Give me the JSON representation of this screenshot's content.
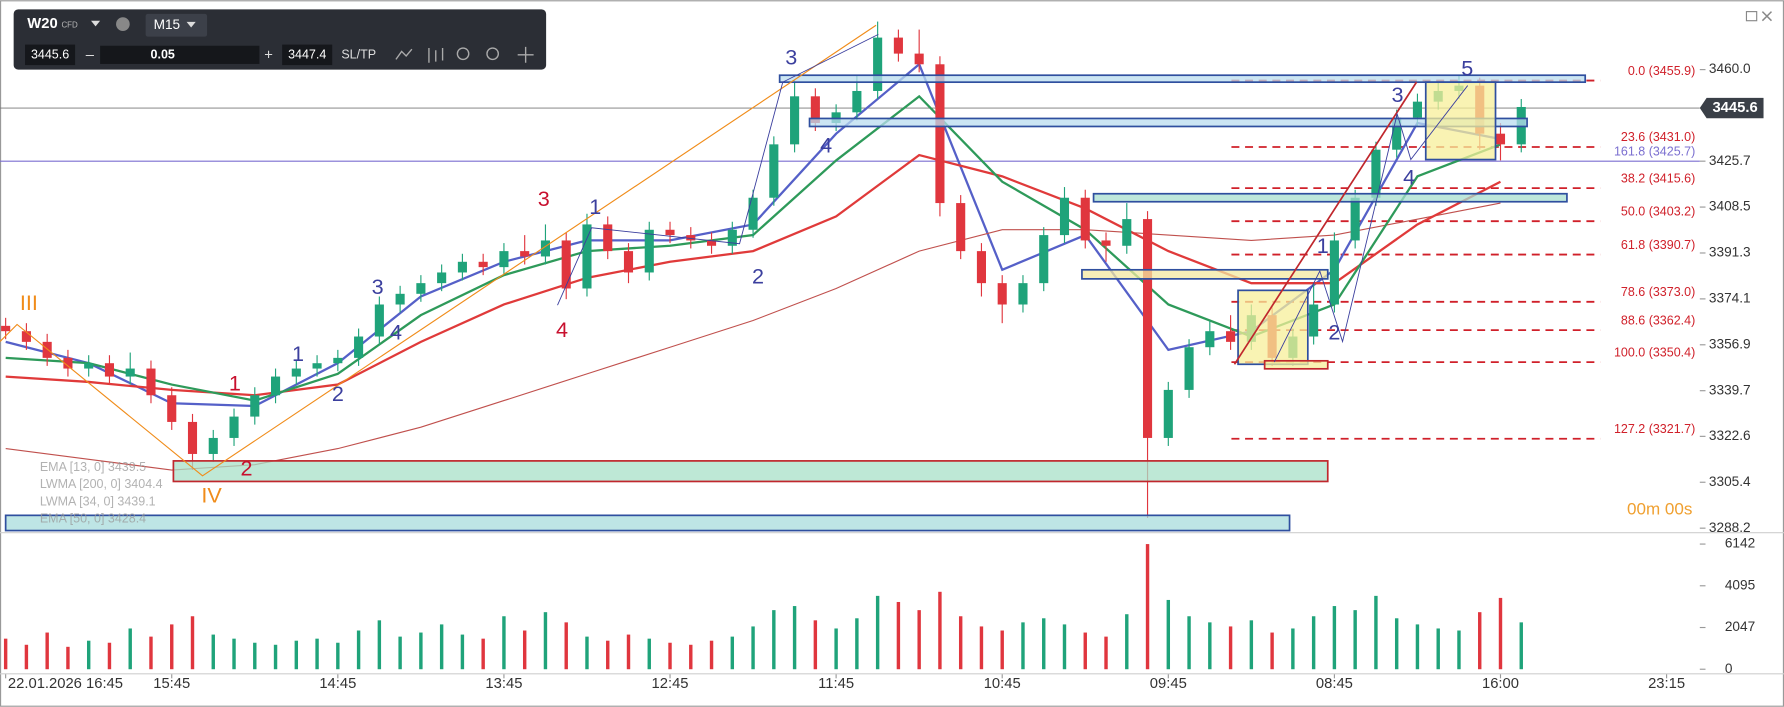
{
  "header": {
    "symbol": "W20",
    "badge": "CFD",
    "timeframe": "M15",
    "bid": "3445.6",
    "decrease": "–",
    "lot": "0.05",
    "increase": "+",
    "ask": "3447.4",
    "sltp": "SL/TP"
  },
  "chart_data": {
    "type": "candlestick",
    "up_color": "#1fa37a",
    "down_color": "#e0363e",
    "xlim": [
      -0.034,
      10.2
    ],
    "ylim": [
      3286.5,
      3486
    ],
    "xticks": [
      {
        "value": 0,
        "label": "22.01.2026 16:45"
      },
      {
        "value": 1,
        "label": "15:45"
      },
      {
        "value": 2,
        "label": "14:45"
      },
      {
        "value": 3,
        "label": "13:45"
      },
      {
        "value": 4,
        "label": "12:45"
      },
      {
        "value": 5,
        "label": "11:45"
      },
      {
        "value": 6,
        "label": "10:45"
      },
      {
        "value": 7,
        "label": "09:45"
      },
      {
        "value": 8,
        "label": "08:45"
      },
      {
        "value": 9,
        "label": "16:00"
      },
      {
        "value": 10,
        "label": "23:15"
      }
    ],
    "yticks": [
      {
        "value": 3460,
        "label": "3460.0"
      },
      3425.7,
      3408.5,
      3391.3,
      3374.1,
      3356.9,
      3339.7,
      3322.6,
      3305.4,
      3288.2
    ],
    "current_price": 3445.6,
    "x": [
      0,
      0.125,
      0.25,
      0.375,
      0.5,
      0.625,
      0.75,
      0.875,
      1,
      1.125,
      1.25,
      1.375,
      1.5,
      1.625,
      1.75,
      1.875,
      2,
      2.125,
      2.25,
      2.375,
      2.5,
      2.625,
      2.75,
      2.875,
      3,
      3.125,
      3.25,
      3.375,
      3.5,
      3.625,
      3.75,
      3.875,
      4,
      4.125,
      4.25,
      4.375,
      4.5,
      4.625,
      4.75,
      4.875,
      5,
      5.125,
      5.25,
      5.375,
      5.5,
      5.625,
      5.75,
      5.875,
      6,
      6.125,
      6.25,
      6.375,
      6.5,
      6.625,
      6.75,
      6.875,
      7,
      7.125,
      7.25,
      7.375,
      7.5,
      7.625,
      7.75,
      7.875,
      8,
      8.125,
      8.25,
      8.375,
      8.5,
      8.625,
      8.75,
      8.875,
      9,
      9.125
    ],
    "open": [
      3364,
      3362,
      3358,
      3352,
      3348,
      3350,
      3345,
      3348,
      3338,
      3328,
      3316,
      3322,
      3330,
      3338,
      3345,
      3348,
      3350,
      3352,
      3360,
      3372,
      3376,
      3380,
      3384,
      3388,
      3386,
      3392,
      3390,
      3396,
      3378,
      3402,
      3392,
      3384,
      3400,
      3398,
      3396,
      3394,
      3400,
      3412,
      3432,
      3450,
      3440,
      3444,
      3452,
      3472,
      3466,
      3462,
      3410,
      3392,
      3380,
      3372,
      3380,
      3398,
      3412,
      3396,
      3394,
      3404,
      3322,
      3340,
      3356,
      3362,
      3358,
      3368,
      3352,
      3360,
      3372,
      3396,
      3412,
      3430,
      3442,
      3448,
      3452,
      3454,
      3436,
      3432
    ],
    "high": [
      3367,
      3365,
      3361,
      3355,
      3353,
      3353,
      3354,
      3351,
      3341,
      3331,
      3325,
      3333,
      3341,
      3348,
      3351,
      3353,
      3355,
      3363,
      3375,
      3379,
      3383,
      3387,
      3391,
      3391,
      3395,
      3398,
      3402,
      3399,
      3406,
      3405,
      3395,
      3403,
      3403,
      3401,
      3399,
      3403,
      3415,
      3435,
      3456,
      3453,
      3447,
      3458,
      3478,
      3475,
      3475,
      3465,
      3413,
      3395,
      3383,
      3383,
      3401,
      3416,
      3415,
      3399,
      3410,
      3407,
      3343,
      3359,
      3366,
      3368,
      3372,
      3371,
      3363,
      3380,
      3399,
      3415,
      3433,
      3445,
      3451,
      3455,
      3458,
      3457,
      3440,
      3449
    ],
    "low": [
      3359,
      3355,
      3349,
      3345,
      3345,
      3342,
      3342,
      3335,
      3325,
      3310,
      3313,
      3319,
      3327,
      3335,
      3342,
      3345,
      3347,
      3349,
      3357,
      3369,
      3373,
      3377,
      3381,
      3383,
      3383,
      3387,
      3387,
      3374,
      3375,
      3389,
      3380,
      3381,
      3395,
      3393,
      3391,
      3391,
      3397,
      3409,
      3429,
      3437,
      3437,
      3441,
      3449,
      3463,
      3459,
      3405,
      3389,
      3375,
      3365,
      3369,
      3377,
      3395,
      3393,
      3388,
      3391,
      3292,
      3319,
      3337,
      3353,
      3355,
      3355,
      3349,
      3349,
      3357,
      3369,
      3393,
      3409,
      3427,
      3439,
      3445,
      3449,
      3430,
      3426,
      3429
    ],
    "close": [
      3362,
      3358,
      3352,
      3348,
      3350,
      3345,
      3348,
      3338,
      3328,
      3316,
      3322,
      3330,
      3338,
      3345,
      3348,
      3350,
      3352,
      3360,
      3372,
      3376,
      3380,
      3384,
      3388,
      3386,
      3392,
      3390,
      3396,
      3378,
      3402,
      3392,
      3384,
      3400,
      3398,
      3396,
      3394,
      3400,
      3412,
      3432,
      3450,
      3440,
      3444,
      3452,
      3472,
      3466,
      3462,
      3410,
      3392,
      3380,
      3372,
      3380,
      3398,
      3412,
      3396,
      3394,
      3404,
      3322,
      3340,
      3356,
      3362,
      3358,
      3368,
      3352,
      3360,
      3372,
      3396,
      3412,
      3430,
      3442,
      3448,
      3452,
      3454,
      3436,
      3432,
      3446
    ],
    "series": [
      {
        "name": "EMA [13, 0] 3439.5",
        "color": "#5560c8",
        "x": [
          0,
          0.5,
          1,
          1.5,
          2,
          2.5,
          3,
          3.5,
          4,
          4.5,
          5,
          5.5,
          6,
          6.5,
          7,
          7.5,
          8,
          8.5,
          9
        ],
        "values": [
          3358,
          3350,
          3335,
          3334,
          3350,
          3375,
          3388,
          3396,
          3396,
          3402,
          3436,
          3462,
          3385,
          3398,
          3355,
          3362,
          3385,
          3440,
          3434
        ]
      },
      {
        "name": "LWMA [200, 0] 3404.4",
        "color": "#c0504d",
        "x": [
          0,
          0.5,
          1,
          1.5,
          2,
          2.5,
          3,
          3.5,
          4,
          4.5,
          5,
          5.5,
          6,
          6.5,
          7,
          7.5,
          8,
          8.5,
          9
        ],
        "values": [
          3318,
          3314,
          3310,
          3312,
          3318,
          3326,
          3336,
          3346,
          3356,
          3366,
          3378,
          3392,
          3400,
          3400,
          3398,
          3396,
          3398,
          3404,
          3410
        ]
      },
      {
        "name": "LWMA [34, 0] 3439.1",
        "color": "#e03a3a",
        "x": [
          0,
          0.5,
          1,
          1.5,
          2,
          2.5,
          3,
          3.5,
          4,
          4.5,
          5,
          5.5,
          6,
          6.5,
          7,
          7.5,
          8,
          8.5,
          9
        ],
        "values": [
          3345,
          3343,
          3340,
          3338,
          3342,
          3358,
          3372,
          3382,
          3388,
          3392,
          3405,
          3428,
          3420,
          3408,
          3392,
          3380,
          3380,
          3402,
          3418
        ]
      },
      {
        "name": "EMA [50, 0] 3428.4",
        "color": "#2e9a5a",
        "x": [
          0,
          0.5,
          1,
          1.5,
          2,
          2.5,
          3,
          3.5,
          4,
          4.5,
          5,
          5.5,
          6,
          6.5,
          7,
          7.5,
          8,
          8.5,
          9
        ],
        "values": [
          3352,
          3350,
          3342,
          3336,
          3346,
          3368,
          3383,
          3392,
          3394,
          3398,
          3426,
          3450,
          3418,
          3400,
          3372,
          3360,
          3372,
          3420,
          3432
        ]
      }
    ],
    "fib_levels": [
      {
        "label": "0.0 (3455.9)",
        "value": 3455.9
      },
      {
        "label": "23.6 (3431.0)",
        "value": 3431.0
      },
      {
        "label": "38.2 (3415.6)",
        "value": 3415.6
      },
      {
        "label": "50.0 (3403.2)",
        "value": 3403.2
      },
      {
        "label": "61.8 (3390.7)",
        "value": 3390.7
      },
      {
        "label": "78.6 (3373.0)",
        "value": 3373.0
      },
      {
        "label": "88.6 (3362.4)",
        "value": 3362.4
      },
      {
        "label": "100.0 (3350.4)",
        "value": 3350.4
      },
      {
        "label": "127.2 (3321.7)",
        "value": 3321.7
      }
    ],
    "fib_color": "#d0202a",
    "horizontal_lines": [
      {
        "label": "161.8 (3425.7)",
        "value": 3425.7,
        "color": "#7b6fd0"
      }
    ],
    "zones": [
      {
        "x": [
          4.66,
          9.51
        ],
        "y": [
          3455.3,
          3457.9
        ],
        "fill": "#b9dcef",
        "stroke": "#2f4f9f"
      },
      {
        "x": [
          4.84,
          9.16
        ],
        "y": [
          3438.7,
          3441.7
        ],
        "fill": "#b9dcef",
        "stroke": "#2f4f9f"
      },
      {
        "x": [
          6.55,
          9.4
        ],
        "y": [
          3410.5,
          3413.5
        ],
        "fill": "#a8dfcf",
        "stroke": "#2f4f9f"
      },
      {
        "x": [
          6.48,
          7.96
        ],
        "y": [
          3381.6,
          3385
        ],
        "fill": "#f3e8a0",
        "stroke": "#2f4f9f"
      },
      {
        "x": [
          1.01,
          7.96
        ],
        "y": [
          3305.7,
          3313.4
        ],
        "fill": "#a8e0c8",
        "stroke": "#c0272d"
      },
      {
        "x": [
          0,
          7.73
        ],
        "y": [
          3287.3,
          3293
        ],
        "fill": "#a8dcdc",
        "stroke": "#2f4f9f"
      },
      {
        "x": [
          7.42,
          7.84
        ],
        "y": [
          3349.6,
          3377.3
        ],
        "fill": "#f7ef9a",
        "stroke": "#2f4f9f"
      },
      {
        "x": [
          8.55,
          8.97
        ],
        "y": [
          3426.3,
          3455.3
        ],
        "fill": "#f7ef9a",
        "stroke": "#2f4f9f"
      },
      {
        "x": [
          7.58,
          7.96
        ],
        "y": [
          3347.9,
          3350.9
        ],
        "fill": "#f7ef9a",
        "stroke": "#c0272d"
      }
    ],
    "annotations": [
      {
        "text": "III",
        "x": 0.14,
        "y": 3372,
        "color": "#f08c1a"
      },
      {
        "text": "IV",
        "x": 1.24,
        "y": 3300,
        "color": "#f08c1a"
      },
      {
        "text": "1",
        "x": 1.38,
        "y": 3342,
        "color": "#c8102e"
      },
      {
        "text": "2",
        "x": 1.45,
        "y": 3310,
        "color": "#c8102e"
      },
      {
        "text": "3",
        "x": 3.24,
        "y": 3411,
        "color": "#c8102e"
      },
      {
        "text": "4",
        "x": 3.35,
        "y": 3362,
        "color": "#c8102e"
      },
      {
        "text": "1",
        "x": 1.76,
        "y": 3353,
        "color": "#3b3f9e"
      },
      {
        "text": "2",
        "x": 2.0,
        "y": 3338,
        "color": "#3b3f9e"
      },
      {
        "text": "3",
        "x": 2.24,
        "y": 3378,
        "color": "#3b3f9e"
      },
      {
        "text": "4",
        "x": 2.35,
        "y": 3361,
        "color": "#3b3f9e"
      },
      {
        "text": "1",
        "x": 3.55,
        "y": 3408,
        "color": "#3b3f9e"
      },
      {
        "text": "2",
        "x": 4.53,
        "y": 3382,
        "color": "#3b3f9e"
      },
      {
        "text": "3",
        "x": 4.73,
        "y": 3464,
        "color": "#3b3f9e"
      },
      {
        "text": "4",
        "x": 4.94,
        "y": 3431,
        "color": "#3b3f9e"
      },
      {
        "text": "1",
        "x": 7.93,
        "y": 3393.5,
        "color": "#3b3f9e"
      },
      {
        "text": "2",
        "x": 8.0,
        "y": 3361,
        "color": "#3b3f9e"
      },
      {
        "text": "3",
        "x": 8.38,
        "y": 3450,
        "color": "#3b3f9e"
      },
      {
        "text": "4",
        "x": 8.45,
        "y": 3419,
        "color": "#3b3f9e"
      },
      {
        "text": "5",
        "x": 8.8,
        "y": 3460,
        "color": "#3b3f9e"
      }
    ],
    "countdown": "00m 00s",
    "volume": {
      "ylim": [
        0,
        6142
      ],
      "yticks": [
        6142,
        4095,
        2047,
        0
      ],
      "values": [
        1500,
        1200,
        1800,
        1100,
        1400,
        1300,
        2000,
        1600,
        2200,
        2600,
        1700,
        1500,
        1300,
        1200,
        1400,
        1500,
        1300,
        1900,
        2400,
        1600,
        1800,
        2200,
        1700,
        1500,
        2600,
        1900,
        2800,
        2300,
        1600,
        1400,
        1700,
        1500,
        1300,
        1200,
        1400,
        1600,
        2100,
        2900,
        3100,
        2400,
        2000,
        2500,
        3600,
        3300,
        2900,
        3800,
        2600,
        2100,
        1900,
        2300,
        2500,
        2200,
        1800,
        1600,
        2700,
        6142,
        3400,
        2600,
        2300,
        2100,
        2400,
        1800,
        2000,
        2600,
        3100,
        2900,
        3600,
        2500,
        2200,
        2000,
        1900,
        2800,
        3500,
        2300
      ]
    }
  }
}
